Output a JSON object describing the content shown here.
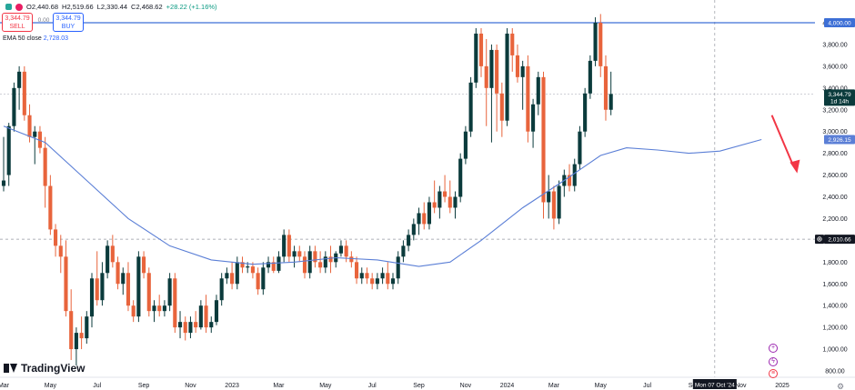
{
  "header": {
    "open": "O2,440.68",
    "high": "H2,519.66",
    "low": "L2,330.44",
    "close": "C2,468.62",
    "change": "+28.22 (+1.16%)"
  },
  "trade": {
    "sell_price": "3,344.79",
    "sell_label": "SELL",
    "buy_price": "3,344.79",
    "buy_label": "BUY",
    "spread": "0.00"
  },
  "indicator": {
    "name": "EMA 50 close",
    "value": "2,728.03"
  },
  "logo_text": "TradingView",
  "colors": {
    "up": "#0b3b3c",
    "down": "#e8643c",
    "ema": "#5b7fd6",
    "resistance": "#3d6fd6",
    "arrow": "#f23645"
  },
  "chart_data": {
    "type": "candlestick",
    "y_ticks": [
      800,
      1000,
      1200,
      1400,
      1600,
      1800,
      2000,
      2200,
      2400,
      2600,
      2800,
      3000,
      3200,
      3400,
      3600,
      3800,
      4000
    ],
    "x_ticks": [
      {
        "label": "Mar",
        "i": 0
      },
      {
        "label": "May",
        "i": 9
      },
      {
        "label": "Jul",
        "i": 18
      },
      {
        "label": "Sep",
        "i": 27
      },
      {
        "label": "Nov",
        "i": 36
      },
      {
        "label": "2023",
        "i": 44
      },
      {
        "label": "Mar",
        "i": 53
      },
      {
        "label": "May",
        "i": 62
      },
      {
        "label": "Jul",
        "i": 71
      },
      {
        "label": "Sep",
        "i": 80
      },
      {
        "label": "Nov",
        "i": 89
      },
      {
        "label": "2024",
        "i": 97
      },
      {
        "label": "Mar",
        "i": 106
      },
      {
        "label": "May",
        "i": 115
      },
      {
        "label": "Jul",
        "i": 124
      },
      {
        "label": "Sep",
        "i": 133
      },
      {
        "label": "Nov",
        "i": 142
      },
      {
        "label": "2025",
        "i": 150
      }
    ],
    "crosshair_label": "Mon 07 Oct '24",
    "crosshair_index": 137,
    "price_labels": [
      {
        "value": 4000,
        "text": "4,000.00",
        "style": "resistance"
      },
      {
        "value": 3344.79,
        "text": "3,344.79",
        "sub": "1d 14h",
        "style": "current"
      },
      {
        "value": 2926.15,
        "text": "2,926.15",
        "style": "ema"
      },
      {
        "value": 2010.66,
        "text": "2,010.66",
        "style": "crosshair"
      }
    ],
    "resistance": 4000,
    "current_price": 3344.79,
    "crosshair_price": 2010.66,
    "candles": [
      [
        2500,
        2950,
        2450,
        2550
      ],
      [
        2600,
        3080,
        2500,
        3050
      ],
      [
        3050,
        3450,
        3000,
        3400
      ],
      [
        3400,
        3600,
        3200,
        3550
      ],
      [
        3550,
        3600,
        3100,
        3150
      ],
      [
        3150,
        3250,
        2900,
        2950
      ],
      [
        2950,
        3050,
        2700,
        3000
      ],
      [
        3000,
        3050,
        2800,
        2850
      ],
      [
        2850,
        2950,
        2300,
        2500
      ],
      [
        2500,
        2600,
        2050,
        2100
      ],
      [
        2100,
        2150,
        1850,
        1950
      ],
      [
        1950,
        2050,
        1700,
        1850
      ],
      [
        1850,
        2000,
        1300,
        1350
      ],
      [
        1350,
        1550,
        900,
        1000
      ],
      [
        1000,
        1200,
        850,
        1150
      ],
      [
        1150,
        1300,
        1000,
        1100
      ],
      [
        1100,
        1350,
        1050,
        1300
      ],
      [
        1300,
        1700,
        1200,
        1650
      ],
      [
        1650,
        1900,
        1400,
        1450
      ],
      [
        1450,
        1800,
        1400,
        1700
      ],
      [
        1700,
        2000,
        1650,
        1950
      ],
      [
        1950,
        2050,
        1750,
        1800
      ],
      [
        1800,
        1850,
        1550,
        1600
      ],
      [
        1600,
        1750,
        1500,
        1700
      ],
      [
        1700,
        1800,
        1350,
        1400
      ],
      [
        1400,
        1450,
        1250,
        1300
      ],
      [
        1300,
        1900,
        1250,
        1850
      ],
      [
        1850,
        1900,
        1650,
        1700
      ],
      [
        1700,
        1750,
        1300,
        1350
      ],
      [
        1350,
        1450,
        1250,
        1400
      ],
      [
        1400,
        1500,
        1300,
        1350
      ],
      [
        1350,
        1450,
        1300,
        1400
      ],
      [
        1400,
        1700,
        1350,
        1650
      ],
      [
        1650,
        1700,
        1150,
        1200
      ],
      [
        1200,
        1350,
        1100,
        1250
      ],
      [
        1250,
        1300,
        1080,
        1150
      ],
      [
        1150,
        1300,
        1100,
        1250
      ],
      [
        1250,
        1350,
        1150,
        1200
      ],
      [
        1200,
        1450,
        1180,
        1400
      ],
      [
        1400,
        1500,
        1150,
        1200
      ],
      [
        1200,
        1300,
        1150,
        1250
      ],
      [
        1250,
        1500,
        1220,
        1450
      ],
      [
        1450,
        1700,
        1400,
        1650
      ],
      [
        1650,
        1750,
        1600,
        1700
      ],
      [
        1700,
        1800,
        1550,
        1600
      ],
      [
        1600,
        1850,
        1550,
        1800
      ],
      [
        1800,
        1850,
        1700,
        1750
      ],
      [
        1750,
        1800,
        1700,
        1760
      ],
      [
        1760,
        1800,
        1650,
        1700
      ],
      [
        1700,
        1750,
        1500,
        1550
      ],
      [
        1550,
        1800,
        1500,
        1750
      ],
      [
        1750,
        1850,
        1700,
        1800
      ],
      [
        1800,
        1850,
        1700,
        1720
      ],
      [
        1720,
        1900,
        1700,
        1850
      ],
      [
        1850,
        2100,
        1800,
        2050
      ],
      [
        2050,
        2100,
        1800,
        1850
      ],
      [
        1850,
        1950,
        1750,
        1900
      ],
      [
        1900,
        1950,
        1800,
        1850
      ],
      [
        1850,
        1900,
        1650,
        1700
      ],
      [
        1700,
        1950,
        1650,
        1900
      ],
      [
        1900,
        1950,
        1750,
        1800
      ],
      [
        1800,
        1900,
        1700,
        1750
      ],
      [
        1750,
        1900,
        1700,
        1850
      ],
      [
        1850,
        1950,
        1700,
        1800
      ],
      [
        1800,
        1900,
        1750,
        1880
      ],
      [
        1880,
        2000,
        1850,
        1950
      ],
      [
        1950,
        2000,
        1800,
        1850
      ],
      [
        1850,
        1900,
        1750,
        1800
      ],
      [
        1800,
        1850,
        1600,
        1650
      ],
      [
        1650,
        1750,
        1600,
        1700
      ],
      [
        1700,
        1750,
        1600,
        1650
      ],
      [
        1650,
        1700,
        1550,
        1600
      ],
      [
        1600,
        1700,
        1550,
        1650
      ],
      [
        1650,
        1750,
        1600,
        1700
      ],
      [
        1700,
        1800,
        1550,
        1600
      ],
      [
        1600,
        1700,
        1550,
        1650
      ],
      [
        1650,
        1900,
        1600,
        1850
      ],
      [
        1850,
        2000,
        1800,
        1950
      ],
      [
        1950,
        2100,
        1900,
        2050
      ],
      [
        2050,
        2200,
        2000,
        2150
      ],
      [
        2150,
        2300,
        2050,
        2250
      ],
      [
        2250,
        2350,
        2100,
        2150
      ],
      [
        2150,
        2400,
        2100,
        2350
      ],
      [
        2350,
        2550,
        2250,
        2300
      ],
      [
        2300,
        2500,
        2200,
        2450
      ],
      [
        2450,
        2600,
        2350,
        2400
      ],
      [
        2400,
        2550,
        2250,
        2300
      ],
      [
        2300,
        2450,
        2200,
        2400
      ],
      [
        2400,
        2800,
        2350,
        2750
      ],
      [
        2750,
        3050,
        2700,
        3000
      ],
      [
        3000,
        3500,
        2950,
        3450
      ],
      [
        3450,
        3950,
        3400,
        3900
      ],
      [
        3900,
        3950,
        3500,
        3600
      ],
      [
        3600,
        3850,
        3050,
        3400
      ],
      [
        3400,
        3800,
        2900,
        3750
      ],
      [
        3750,
        3800,
        3000,
        3350
      ],
      [
        3350,
        3450,
        2950,
        3100
      ],
      [
        3100,
        3950,
        3050,
        3900
      ],
      [
        3900,
        3950,
        3550,
        3700
      ],
      [
        3700,
        3800,
        3450,
        3500
      ],
      [
        3500,
        3650,
        3200,
        3600
      ],
      [
        3600,
        3700,
        2900,
        3000
      ],
      [
        3000,
        3300,
        2850,
        3250
      ],
      [
        3250,
        3550,
        3150,
        3500
      ],
      [
        3500,
        3550,
        2200,
        2350
      ],
      [
        2350,
        2600,
        2200,
        2450
      ],
      [
        2450,
        2500,
        2100,
        2200
      ],
      [
        2200,
        2550,
        2150,
        2500
      ],
      [
        2500,
        2650,
        2400,
        2600
      ],
      [
        2600,
        2700,
        2450,
        2500
      ],
      [
        2500,
        2750,
        2450,
        2700
      ],
      [
        2700,
        3050,
        2650,
        3000
      ],
      [
        3000,
        3400,
        2950,
        3350
      ],
      [
        3350,
        3700,
        3300,
        3650
      ],
      [
        3650,
        4050,
        3600,
        4000
      ],
      [
        4000,
        4080,
        3500,
        3600
      ],
      [
        3600,
        3700,
        3100,
        3200
      ],
      [
        3200,
        3550,
        3150,
        3344.79
      ]
    ],
    "ema50": [
      [
        0,
        3050
      ],
      [
        8,
        2900
      ],
      [
        16,
        2550
      ],
      [
        24,
        2200
      ],
      [
        32,
        1950
      ],
      [
        40,
        1820
      ],
      [
        48,
        1780
      ],
      [
        56,
        1800
      ],
      [
        64,
        1840
      ],
      [
        72,
        1820
      ],
      [
        80,
        1760
      ],
      [
        86,
        1800
      ],
      [
        92,
        2000
      ],
      [
        100,
        2300
      ],
      [
        108,
        2550
      ],
      [
        115,
        2780
      ],
      [
        120,
        2850
      ],
      [
        126,
        2830
      ],
      [
        132,
        2800
      ],
      [
        138,
        2820
      ],
      [
        146,
        2926
      ]
    ]
  }
}
